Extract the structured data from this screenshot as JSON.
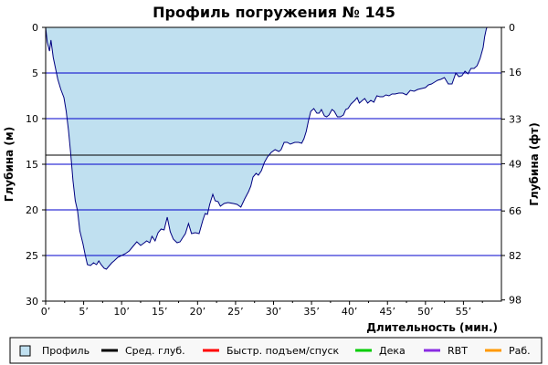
{
  "chart_data": {
    "type": "area",
    "title": "Профиль погружения № 145",
    "xlabel": "Длительность (мин.)",
    "ylabel_left": "Глубина (м)",
    "ylabel_right": "Глубина (фт)",
    "xlim": [
      0,
      60
    ],
    "ylim": [
      0,
      30
    ],
    "y_inverted": true,
    "x_ticks": [
      0,
      5,
      10,
      15,
      20,
      25,
      30,
      35,
      40,
      45,
      50,
      55
    ],
    "x_tick_labels": [
      "0’",
      "5’",
      "10’",
      "15’",
      "20’",
      "25’",
      "30’",
      "35’",
      "40’",
      "45’",
      "50’",
      "55’"
    ],
    "y_ticks": [
      0,
      5,
      10,
      15,
      20,
      25,
      30
    ],
    "y_tick_labels": [
      "0",
      "5",
      "10",
      "15",
      "20",
      "25",
      "30"
    ],
    "y_right_ticks": [
      0,
      4.88,
      10.06,
      14.94,
      20.12,
      25.0,
      29.87
    ],
    "y_right_tick_labels": [
      "0",
      "16",
      "33",
      "49",
      "66",
      "82",
      "98"
    ],
    "horizontal_lines": [
      {
        "depth": 5,
        "color": "#0000cc"
      },
      {
        "depth": 10,
        "color": "#0000cc"
      },
      {
        "depth": 14,
        "color": "#000000"
      },
      {
        "depth": 15,
        "color": "#0000cc"
      },
      {
        "depth": 20,
        "color": "#0000cc"
      },
      {
        "depth": 25,
        "color": "#0000cc"
      }
    ],
    "profile": [
      [
        0,
        0
      ],
      [
        0.2,
        1.6
      ],
      [
        0.5,
        2.6
      ],
      [
        0.7,
        1.4
      ],
      [
        1.0,
        3.3
      ],
      [
        1.3,
        4.5
      ],
      [
        1.6,
        5.7
      ],
      [
        2.0,
        6.8
      ],
      [
        2.4,
        7.7
      ],
      [
        2.7,
        9.2
      ],
      [
        3.0,
        11.3
      ],
      [
        3.3,
        13.8
      ],
      [
        3.6,
        16.8
      ],
      [
        3.9,
        19.0
      ],
      [
        4.2,
        20.1
      ],
      [
        4.5,
        22.3
      ],
      [
        4.9,
        23.7
      ],
      [
        5.2,
        24.9
      ],
      [
        5.5,
        26.0
      ],
      [
        5.9,
        26.1
      ],
      [
        6.3,
        25.8
      ],
      [
        6.7,
        26.0
      ],
      [
        7.0,
        25.6
      ],
      [
        7.3,
        26.0
      ],
      [
        7.7,
        26.4
      ],
      [
        8.0,
        26.5
      ],
      [
        8.3,
        26.2
      ],
      [
        8.7,
        25.8
      ],
      [
        9.0,
        25.6
      ],
      [
        9.5,
        25.2
      ],
      [
        10.0,
        25.0
      ],
      [
        10.5,
        24.8
      ],
      [
        11.0,
        24.5
      ],
      [
        11.5,
        24.0
      ],
      [
        12.0,
        23.5
      ],
      [
        12.5,
        23.9
      ],
      [
        13.0,
        23.6
      ],
      [
        13.3,
        23.4
      ],
      [
        13.7,
        23.6
      ],
      [
        14.0,
        22.9
      ],
      [
        14.4,
        23.4
      ],
      [
        14.8,
        22.5
      ],
      [
        15.2,
        22.1
      ],
      [
        15.6,
        22.2
      ],
      [
        16.0,
        20.8
      ],
      [
        16.4,
        22.4
      ],
      [
        16.8,
        23.2
      ],
      [
        17.3,
        23.6
      ],
      [
        17.7,
        23.5
      ],
      [
        18.0,
        23.1
      ],
      [
        18.4,
        22.6
      ],
      [
        18.8,
        21.5
      ],
      [
        19.2,
        22.6
      ],
      [
        19.7,
        22.5
      ],
      [
        20.2,
        22.6
      ],
      [
        20.7,
        21.1
      ],
      [
        21.0,
        20.4
      ],
      [
        21.3,
        20.5
      ],
      [
        21.6,
        19.4
      ],
      [
        22.0,
        18.3
      ],
      [
        22.3,
        19.0
      ],
      [
        22.7,
        19.1
      ],
      [
        23.0,
        19.6
      ],
      [
        23.5,
        19.3
      ],
      [
        24.0,
        19.2
      ],
      [
        24.7,
        19.3
      ],
      [
        25.2,
        19.4
      ],
      [
        25.7,
        19.7
      ],
      [
        26.2,
        18.8
      ],
      [
        26.7,
        18.0
      ],
      [
        27.0,
        17.4
      ],
      [
        27.3,
        16.4
      ],
      [
        27.7,
        16.0
      ],
      [
        28.0,
        16.2
      ],
      [
        28.4,
        15.7
      ],
      [
        28.8,
        14.8
      ],
      [
        29.2,
        14.2
      ],
      [
        29.7,
        13.7
      ],
      [
        30.2,
        13.4
      ],
      [
        30.7,
        13.6
      ],
      [
        31.0,
        13.4
      ],
      [
        31.4,
        12.6
      ],
      [
        31.8,
        12.6
      ],
      [
        32.2,
        12.8
      ],
      [
        32.8,
        12.6
      ],
      [
        33.3,
        12.6
      ],
      [
        33.7,
        12.7
      ],
      [
        34.0,
        12.2
      ],
      [
        34.3,
        11.4
      ],
      [
        34.6,
        10.2
      ],
      [
        34.9,
        9.2
      ],
      [
        35.3,
        8.9
      ],
      [
        35.7,
        9.4
      ],
      [
        36.0,
        9.4
      ],
      [
        36.3,
        9.0
      ],
      [
        36.7,
        9.7
      ],
      [
        37.0,
        9.8
      ],
      [
        37.3,
        9.6
      ],
      [
        37.7,
        9.0
      ],
      [
        38.0,
        9.2
      ],
      [
        38.4,
        9.8
      ],
      [
        38.8,
        9.8
      ],
      [
        39.2,
        9.6
      ],
      [
        39.5,
        9.0
      ],
      [
        39.8,
        8.9
      ],
      [
        40.2,
        8.4
      ],
      [
        40.7,
        8.0
      ],
      [
        41.0,
        7.7
      ],
      [
        41.3,
        8.3
      ],
      [
        41.7,
        8.0
      ],
      [
        42.0,
        7.8
      ],
      [
        42.4,
        8.3
      ],
      [
        42.8,
        8.0
      ],
      [
        43.2,
        8.2
      ],
      [
        43.6,
        7.5
      ],
      [
        44.0,
        7.6
      ],
      [
        44.4,
        7.6
      ],
      [
        44.8,
        7.4
      ],
      [
        45.2,
        7.5
      ],
      [
        45.6,
        7.3
      ],
      [
        46.0,
        7.3
      ],
      [
        46.5,
        7.2
      ],
      [
        47.0,
        7.2
      ],
      [
        47.5,
        7.4
      ],
      [
        48.0,
        6.9
      ],
      [
        48.5,
        7.0
      ],
      [
        49.0,
        6.8
      ],
      [
        49.5,
        6.7
      ],
      [
        50.0,
        6.6
      ],
      [
        50.4,
        6.3
      ],
      [
        50.8,
        6.2
      ],
      [
        51.2,
        6.0
      ],
      [
        51.6,
        5.8
      ],
      [
        52.0,
        5.7
      ],
      [
        52.5,
        5.5
      ],
      [
        53.0,
        6.2
      ],
      [
        53.5,
        6.2
      ],
      [
        54.0,
        5.0
      ],
      [
        54.4,
        5.4
      ],
      [
        54.8,
        5.3
      ],
      [
        55.2,
        4.8
      ],
      [
        55.6,
        5.1
      ],
      [
        56.0,
        4.5
      ],
      [
        56.4,
        4.5
      ],
      [
        56.8,
        4.2
      ],
      [
        57.2,
        3.4
      ],
      [
        57.6,
        2.2
      ],
      [
        57.8,
        1.0
      ],
      [
        58.0,
        0.2
      ],
      [
        58.1,
        0
      ]
    ],
    "legend": [
      {
        "label": "Профиль",
        "color": "#c0e0f0",
        "kind": "box"
      },
      {
        "label": "Сред. глуб.",
        "color": "#000000",
        "kind": "line"
      },
      {
        "label": "Быстр. подъем/спуск",
        "color": "#ff0000",
        "kind": "line"
      },
      {
        "label": "Дека",
        "color": "#00cc00",
        "kind": "line"
      },
      {
        "label": "RBT",
        "color": "#8a2be2",
        "kind": "line"
      },
      {
        "label": "Раб.",
        "color": "#ff9900",
        "kind": "line"
      }
    ],
    "colors": {
      "fill": "#c0e0f0",
      "profile_line": "#000080",
      "frame": "#000000",
      "legend_bg": "#f8f8f8"
    }
  }
}
